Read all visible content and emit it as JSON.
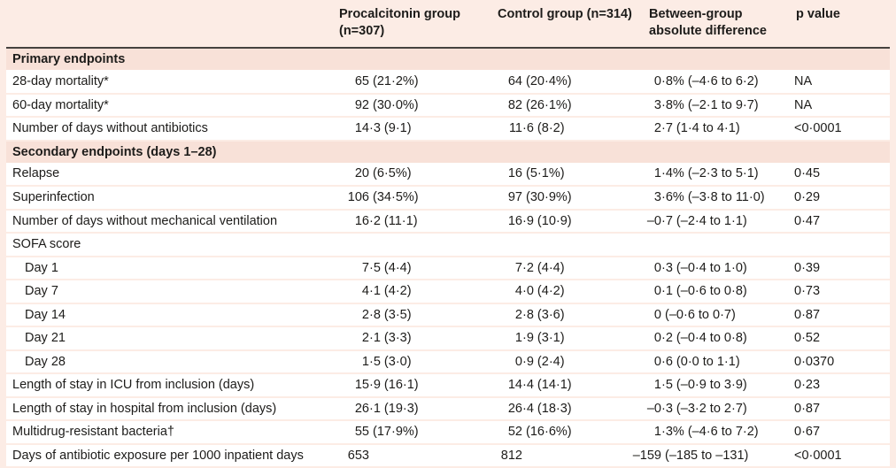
{
  "table": {
    "columns": [
      "",
      "Procalcitonin group (n=307)",
      "Control group (n=314)",
      "Between-group absolute difference",
      "p value"
    ],
    "rows": [
      {
        "type": "section",
        "label": "Primary endpoints"
      },
      {
        "type": "data",
        "label": "28-day mortality*",
        "values": [
          "65 (21·2%)",
          "64 (20·4%)",
          "0·8% (–4·6 to 6·2)",
          "NA"
        ]
      },
      {
        "type": "data",
        "label": "60-day mortality*",
        "values": [
          "92 (30·0%)",
          "82 (26·1%)",
          "3·8% (–2·1 to 9·7)",
          "NA"
        ]
      },
      {
        "type": "data",
        "label": "Number of days without antibiotics",
        "values": [
          "14·3 (9·1)",
          "11·6 (8·2)",
          "2·7 (1·4 to 4·1)",
          "<0·0001"
        ]
      },
      {
        "type": "section",
        "label": "Secondary endpoints (days 1–28)"
      },
      {
        "type": "data",
        "label": "Relapse",
        "values": [
          "20 (6·5%)",
          "16 (5·1%)",
          "1·4% (–2·3 to 5·1)",
          "0·45"
        ]
      },
      {
        "type": "data",
        "label": "Superinfection",
        "values": [
          "106 (34·5%)",
          "97 (30·9%)",
          "3·6% (–3·8 to 11·0)",
          "0·29"
        ]
      },
      {
        "type": "data",
        "label": "Number of days without mechanical ventilation",
        "values": [
          "16·2 (11·1)",
          "16·9 (10·9)",
          "–0·7 (–2·4 to 1·1)",
          "0·47"
        ]
      },
      {
        "type": "data",
        "label": "SOFA score",
        "values": [
          "",
          "",
          "",
          ""
        ]
      },
      {
        "type": "data",
        "indent": true,
        "label": "Day 1",
        "values": [
          "7·5 (4·4)",
          "7·2 (4·4)",
          "0·3 (–0·4 to 1·0)",
          "0·39"
        ]
      },
      {
        "type": "data",
        "indent": true,
        "label": "Day 7",
        "values": [
          "4·1 (4·2)",
          "4·0 (4·2)",
          "0·1 (–0·6 to 0·8)",
          "0·73"
        ]
      },
      {
        "type": "data",
        "indent": true,
        "label": "Day 14",
        "values": [
          "2·8 (3·5)",
          "2·8 (3·6)",
          "0 (–0·6 to 0·7)",
          "0·87"
        ]
      },
      {
        "type": "data",
        "indent": true,
        "label": "Day 21",
        "values": [
          "2·1 (3·3)",
          "1·9 (3·1)",
          "0·2 (–0·4 to 0·8)",
          "0·52"
        ]
      },
      {
        "type": "data",
        "indent": true,
        "label": "Day 28",
        "values": [
          "1·5 (3·0)",
          "0·9 (2·4)",
          "0·6 (0·0 to 1·1)",
          "0·0370"
        ]
      },
      {
        "type": "data",
        "label": "Length of stay in ICU from inclusion (days)",
        "values": [
          "15·9 (16·1)",
          "14·4 (14·1)",
          "1·5 (–0·9 to 3·9)",
          "0·23"
        ]
      },
      {
        "type": "data",
        "label": "Length of stay in hospital from inclusion (days)",
        "values": [
          "26·1 (19·3)",
          "26·4 (18·3)",
          "–0·3 (–3·2 to 2·7)",
          "0·87"
        ]
      },
      {
        "type": "data",
        "label": "Multidrug-resistant bacteria†",
        "values": [
          "55 (17·9%)",
          "52 (16·6%)",
          "1·3% (–4·6 to 7·2)",
          "0·67"
        ]
      },
      {
        "type": "data",
        "label": "Days of antibiotic exposure per 1000 inpatient days",
        "values": [
          "653",
          "812",
          "–159 (–185 to –131)",
          "<0·0001"
        ]
      }
    ]
  },
  "colors": {
    "page_background": "#fcece5",
    "section_band": "#f8e1d8",
    "data_row_background": "#ffffff",
    "header_rule": "#45423e",
    "text": "#1d1c1a"
  }
}
